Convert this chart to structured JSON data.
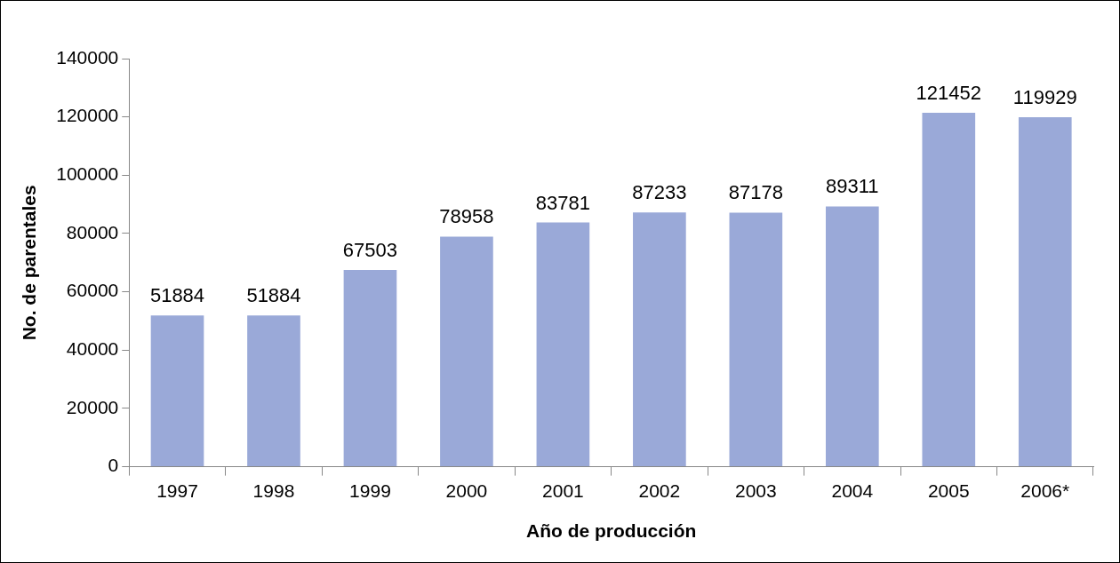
{
  "chart_data": {
    "type": "bar",
    "xlabel": "Año de producción",
    "ylabel": "No. de parentales",
    "categories": [
      "1997",
      "1998",
      "1999",
      "2000",
      "2001",
      "2002",
      "2003",
      "2004",
      "2005",
      "2006*"
    ],
    "values": [
      51884,
      51884,
      67503,
      78958,
      83781,
      87233,
      87178,
      89311,
      121452,
      119929
    ],
    "color": "#9aa9d8",
    "ylim": [
      0,
      140000
    ],
    "yticks": [
      0,
      20000,
      40000,
      60000,
      80000,
      100000,
      120000,
      140000
    ],
    "grid": false,
    "legend": false,
    "data_labels": true
  }
}
